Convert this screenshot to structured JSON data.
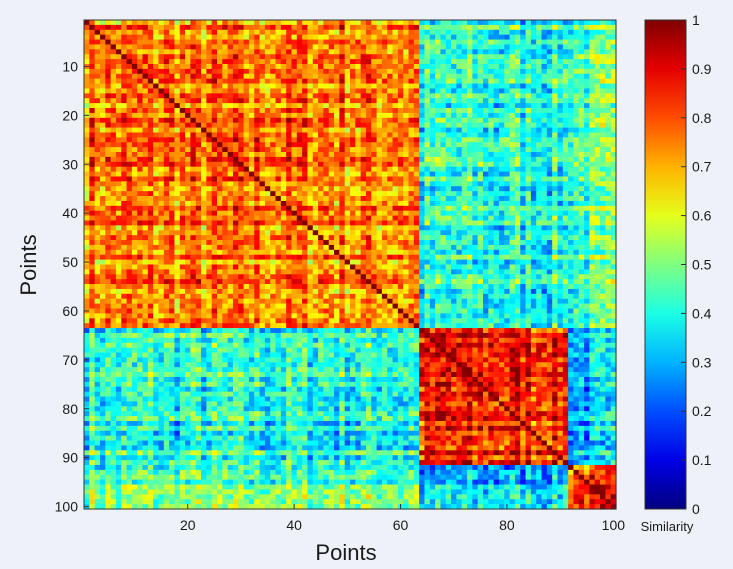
{
  "chart_data": {
    "type": "heatmap",
    "title": "",
    "xlabel": "Points",
    "ylabel": "Points",
    "xlim": [
      1,
      100
    ],
    "ylim": [
      1,
      100
    ],
    "y_reversed": true,
    "xticks": [
      20,
      40,
      60,
      80,
      100
    ],
    "yticks": [
      10,
      20,
      30,
      40,
      50,
      60,
      70,
      80,
      90,
      100
    ],
    "colormap": "jet",
    "colorbar": {
      "label": "Similarity",
      "range": [
        0,
        1
      ],
      "ticks": [
        "0",
        "0.1",
        "0.2",
        "0.3",
        "0.4",
        "0.5",
        "0.6",
        "0.7",
        "0.8",
        "0.9",
        "1"
      ]
    },
    "n_points": 100,
    "diagonal_value": 1.0,
    "clusters": [
      {
        "points": [
          1,
          63
        ],
        "within_similarity": 0.75
      },
      {
        "points": [
          64,
          91
        ],
        "within_similarity": 0.85
      },
      {
        "points": [
          92,
          100
        ],
        "within_similarity": 0.8
      }
    ],
    "between_cluster_similarity": [
      {
        "clusters": [
          1,
          2
        ],
        "value": 0.4
      },
      {
        "clusters": [
          1,
          3
        ],
        "value": 0.45
      },
      {
        "clusters": [
          2,
          3
        ],
        "value": 0.3
      }
    ],
    "grid": false
  }
}
